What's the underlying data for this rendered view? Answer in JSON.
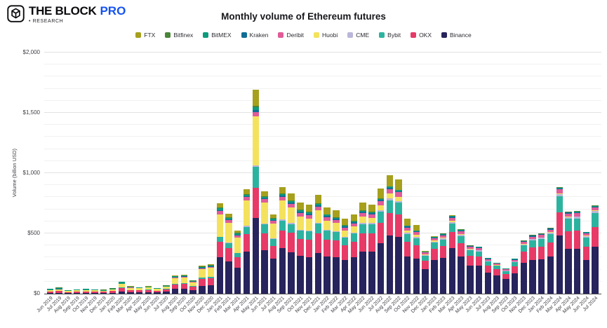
{
  "header": {
    "logo": {
      "brand": "THE BLOCK",
      "brand_suffix": "PRO",
      "subtitle": "• RESEARCH"
    }
  },
  "chart_data": {
    "type": "bar",
    "stacked": true,
    "title": "Monthly volume of Ethereum futures",
    "xlabel": "",
    "ylabel": "Volume (billion USD)",
    "ylim": [
      0,
      2000
    ],
    "ytick_values": [
      0,
      500,
      1000,
      1500,
      2000
    ],
    "ytick_labels": [
      "$0",
      "$500",
      "$1,000",
      "$1,500",
      "$2,000"
    ],
    "minor_grid_step": 100,
    "grid": true,
    "legend_position": "top",
    "legend_order": [
      "FTX",
      "Bitfinex",
      "BitMEX",
      "Kraken",
      "Deribit",
      "Huobi",
      "CME",
      "Bybit",
      "OKX",
      "Binance"
    ],
    "categories": [
      "Jun 2019",
      "Jul 2019",
      "Aug 2019",
      "Sep 2019",
      "Oct 2019",
      "Nov 2019",
      "Dec 2019",
      "Jan 2020",
      "Feb 2020",
      "Mar 2020",
      "Apr 2020",
      "May 2020",
      "Jun 2020",
      "Jul 2020",
      "Aug 2020",
      "Sep 2020",
      "Oct 2020",
      "Nov 2020",
      "Dec 2020",
      "Jan 2021",
      "Feb 2021",
      "Mar 2021",
      "Apr 2021",
      "May 2021",
      "Jun 2021",
      "Jul 2021",
      "Aug 2021",
      "Sep 2021",
      "Oct 2021",
      "Nov 2021",
      "Dec 2021",
      "Jan 2022",
      "Feb 2022",
      "Mar 2022",
      "Apr 2022",
      "May 2022",
      "Jun 2022",
      "Jul 2022",
      "Aug 2022",
      "Sep 2022",
      "Oct 2022",
      "Nov 2022",
      "Dec 2022",
      "Jan 2023",
      "Feb 2023",
      "Mar 2023",
      "Apr 2023",
      "May 2023",
      "Jun 2023",
      "Jul 2023",
      "Aug 2023",
      "Sep 2023",
      "Oct 2023",
      "Nov 2023",
      "Dec 2023",
      "Jan 2024",
      "Feb 2024",
      "Mar 2024",
      "Apr 2024",
      "May 2024",
      "Jun 2024",
      "Jul 2024"
    ],
    "series": [
      {
        "name": "Binance",
        "color": "#27235c",
        "values": [
          4,
          5,
          3,
          4,
          4.5,
          4,
          4,
          7,
          18,
          12,
          11,
          13,
          10,
          16,
          38,
          42,
          30,
          65,
          72,
          300,
          265,
          215,
          350,
          630,
          360,
          290,
          380,
          345,
          315,
          305,
          340,
          310,
          305,
          280,
          300,
          350,
          350,
          420,
          480,
          470,
          310,
          290,
          205,
          280,
          295,
          380,
          310,
          235,
          230,
          175,
          150,
          122,
          168,
          255,
          280,
          285,
          310,
          480,
          370,
          370,
          280,
          390
        ]
      },
      {
        "name": "OKX",
        "color": "#e73a67",
        "values": [
          15,
          18,
          11,
          13,
          14,
          13,
          12,
          15,
          30,
          18,
          16,
          18,
          13,
          19,
          38,
          39,
          27,
          55,
          56,
          130,
          115,
          88,
          145,
          250,
          140,
          105,
          145,
          160,
          140,
          140,
          160,
          140,
          135,
          120,
          130,
          150,
          148,
          170,
          190,
          185,
          120,
          112,
          70,
          92,
          98,
          130,
          108,
          80,
          78,
          58,
          52,
          42,
          60,
          92,
          102,
          105,
          115,
          195,
          150,
          152,
          110,
          165
        ]
      },
      {
        "name": "Bybit",
        "color": "#2cb3a0",
        "values": [
          1,
          1,
          0.5,
          1,
          1,
          1,
          1,
          1,
          3,
          2,
          2,
          2.5,
          2,
          3,
          7,
          8,
          6,
          12,
          13,
          40,
          38,
          32,
          60,
          175,
          75,
          58,
          80,
          72,
          68,
          70,
          80,
          72,
          70,
          63,
          68,
          78,
          76,
          90,
          105,
          100,
          65,
          60,
          38,
          52,
          55,
          72,
          60,
          44,
          43,
          33,
          28,
          23,
          33,
          52,
          58,
          62,
          70,
          135,
          100,
          102,
          78,
          115
        ]
      },
      {
        "name": "CME",
        "color": "#bab6da",
        "values": [
          0,
          0,
          0,
          0,
          0,
          0,
          0,
          0,
          0,
          0,
          0,
          0,
          0,
          0,
          0,
          0,
          0,
          0,
          0,
          0,
          5,
          5,
          7,
          10,
          8,
          6,
          9,
          9,
          9,
          9,
          10,
          10,
          10,
          9,
          10,
          12,
          12,
          14,
          15,
          15,
          10,
          10,
          7,
          9,
          10,
          13,
          11,
          8,
          8,
          6,
          5,
          5,
          6,
          9,
          11,
          11,
          12,
          18,
          14,
          14,
          11,
          15
        ]
      },
      {
        "name": "Huobi",
        "color": "#f4e25e",
        "values": [
          10,
          12,
          7,
          9,
          10,
          9,
          8,
          11,
          28,
          16,
          15,
          17,
          13,
          20,
          45,
          47,
          33,
          70,
          72,
          190,
          165,
          125,
          210,
          407,
          175,
          125,
          160,
          128,
          110,
          100,
          100,
          75,
          65,
          52,
          50,
          50,
          42,
          40,
          40,
          35,
          20,
          16,
          8,
          8,
          8,
          9,
          8,
          5,
          4,
          3,
          2.5,
          2,
          2.5,
          3,
          3,
          3,
          3,
          5,
          4,
          4,
          3,
          8
        ]
      },
      {
        "name": "Deribit",
        "color": "#e05c97",
        "values": [
          1.5,
          2,
          1,
          1,
          1,
          1,
          1,
          1.5,
          3,
          2,
          2,
          2,
          1.5,
          2,
          5,
          5,
          4,
          8,
          9,
          25,
          22,
          18,
          28,
          35,
          25,
          20,
          28,
          30,
          28,
          28,
          30,
          28,
          27,
          25,
          26,
          30,
          30,
          34,
          38,
          36,
          24,
          22,
          14,
          18,
          18,
          26,
          22,
          16,
          15,
          12,
          10,
          8,
          12,
          18,
          20,
          20,
          22,
          33,
          26,
          27,
          18,
          23
        ]
      },
      {
        "name": "Kraken",
        "color": "#0f6d94",
        "values": [
          0.5,
          0.5,
          0.5,
          0.5,
          0.5,
          0.5,
          0.5,
          0.5,
          1,
          1,
          1,
          1,
          0.5,
          1,
          2,
          2,
          1.5,
          3,
          3,
          8,
          8,
          7,
          10,
          18,
          10,
          8,
          11,
          11,
          10,
          10,
          11,
          10,
          9,
          8,
          8,
          9,
          9,
          10,
          11,
          10,
          7,
          6,
          4,
          6,
          6,
          8,
          7,
          5,
          5,
          4,
          3.5,
          3,
          4,
          6,
          7,
          7,
          7,
          9,
          8,
          8,
          6,
          8
        ]
      },
      {
        "name": "BitMEX",
        "color": "#0e9a7d",
        "values": [
          9,
          10,
          6,
          6.5,
          8,
          6.5,
          5.5,
          8,
          14,
          9,
          6,
          6,
          4,
          6,
          9,
          9,
          6,
          9,
          9,
          15,
          12,
          9,
          12,
          20,
          12,
          10,
          13,
          12,
          11,
          11,
          12,
          10,
          9,
          8,
          8,
          9,
          8,
          9,
          10,
          9,
          6,
          5,
          4,
          6,
          5,
          7,
          5,
          4,
          4,
          3,
          3,
          2.5,
          3,
          4,
          4,
          4,
          4,
          6,
          5,
          5,
          4,
          5
        ]
      },
      {
        "name": "Bitfinex",
        "color": "#4a8538",
        "values": [
          1,
          1.5,
          1,
          1,
          1,
          1,
          1,
          1,
          2,
          1,
          1,
          1,
          1,
          1,
          2,
          2,
          1.5,
          3,
          3,
          7,
          6,
          5,
          6,
          12,
          6,
          5,
          6,
          6,
          5,
          5,
          5,
          4,
          4,
          3,
          3,
          3,
          3,
          3,
          3,
          3,
          2,
          2,
          2,
          3,
          3,
          3,
          3,
          2,
          2,
          1.5,
          1.5,
          1,
          1,
          2,
          2,
          2,
          2,
          3,
          2,
          3,
          1.5,
          2
        ]
      },
      {
        "name": "FTX",
        "color": "#a6a01c",
        "values": [
          0,
          0,
          0,
          0,
          0,
          0,
          0,
          0,
          1,
          1,
          1,
          1.5,
          1,
          2,
          4,
          4,
          3,
          7,
          8,
          35,
          27,
          19,
          38,
          133,
          37,
          30,
          52,
          58,
          59,
          60,
          71,
          56,
          56,
          52,
          57,
          64,
          62,
          80,
          93,
          87,
          56,
          47,
          3,
          2,
          2,
          2,
          1,
          1,
          1,
          0.5,
          0.5,
          0.5,
          0.5,
          1,
          1,
          1,
          1,
          1,
          1,
          1,
          0.5,
          1
        ]
      }
    ]
  }
}
